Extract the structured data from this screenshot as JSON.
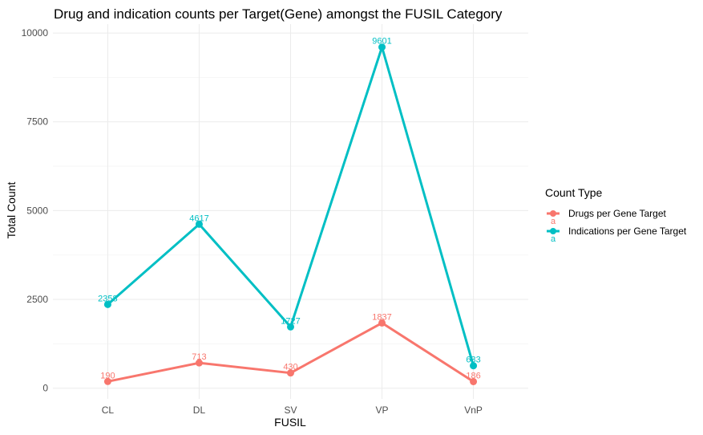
{
  "chart_data": {
    "type": "line",
    "title": "Drug and indication counts per Target(Gene) amongst the FUSIL Category",
    "xlabel": "FUSIL",
    "ylabel": "Total Count",
    "categories": [
      "CL",
      "DL",
      "SV",
      "VP",
      "VnP"
    ],
    "yticks": [
      0,
      2500,
      5000,
      7500,
      10000
    ],
    "ylim": [
      -300,
      10250
    ],
    "grid": true,
    "legend": {
      "title": "Count Type",
      "placement": "right",
      "key_glyph_text": "a"
    },
    "series": [
      {
        "name": "Drugs per Gene Target",
        "color": "#F8766D",
        "values": [
          190,
          713,
          430,
          1837,
          186
        ],
        "labels": [
          "190",
          "713",
          "430",
          "1837",
          "186"
        ]
      },
      {
        "name": "Indications per Gene Target",
        "color": "#00BFC4",
        "values": [
          2358,
          4617,
          1727,
          9601,
          633
        ],
        "labels": [
          "2358",
          "4617",
          "1727",
          "9601",
          "633"
        ]
      }
    ]
  }
}
